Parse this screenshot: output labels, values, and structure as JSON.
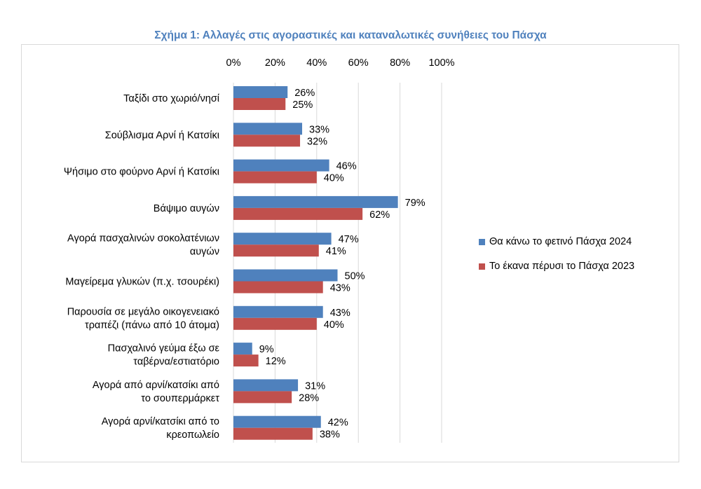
{
  "chart_data": {
    "type": "bar",
    "orientation": "horizontal",
    "title": "Σχήμα 1: Αλλαγές στις αγοραστικές και καταναλωτικές συνήθειες του Πάσχα",
    "categories": [
      [
        "Ταξίδι στο χωριό/νησί"
      ],
      [
        "Σούβλισμα Αρνί ή Κατσίκι"
      ],
      [
        "Ψήσιμο στο φούρνο Αρνί ή Κατσίκι"
      ],
      [
        "Βάψιμο αυγών"
      ],
      [
        "Αγορά πασχαλινών σοκολατένιων",
        "αυγών"
      ],
      [
        "Μαγείρεμα γλυκών (π.χ. τσουρέκι)"
      ],
      [
        "Παρουσία σε μεγάλο οικογενειακό",
        "τραπέζι (πάνω από 10 άτομα)"
      ],
      [
        "Πασχαλινό γεύμα έξω σε",
        "ταβέρνα/εστιατόριο"
      ],
      [
        "Αγορά από αρνί/κατσίκι από",
        "το σουπερμάρκετ"
      ],
      [
        "Αγορά αρνί/κατσίκι από το",
        "κρεοπωλείο"
      ]
    ],
    "series": [
      {
        "name": "Θα κάνω το φετινό Πάσχα 2024",
        "color": "#4f81bd",
        "values": [
          26,
          33,
          46,
          79,
          47,
          50,
          43,
          9,
          31,
          42
        ]
      },
      {
        "name": "Το έκανα πέρυσι το Πάσχα 2023",
        "color": "#c0504d",
        "values": [
          25,
          32,
          40,
          62,
          41,
          43,
          40,
          12,
          28,
          38
        ]
      }
    ],
    "xlim": [
      0,
      100
    ],
    "xticks": [
      "0%",
      "20%",
      "40%",
      "60%",
      "80%",
      "100%"
    ],
    "axis_position": "top",
    "grid": true,
    "legend_position": "right",
    "value_format": "percent"
  }
}
